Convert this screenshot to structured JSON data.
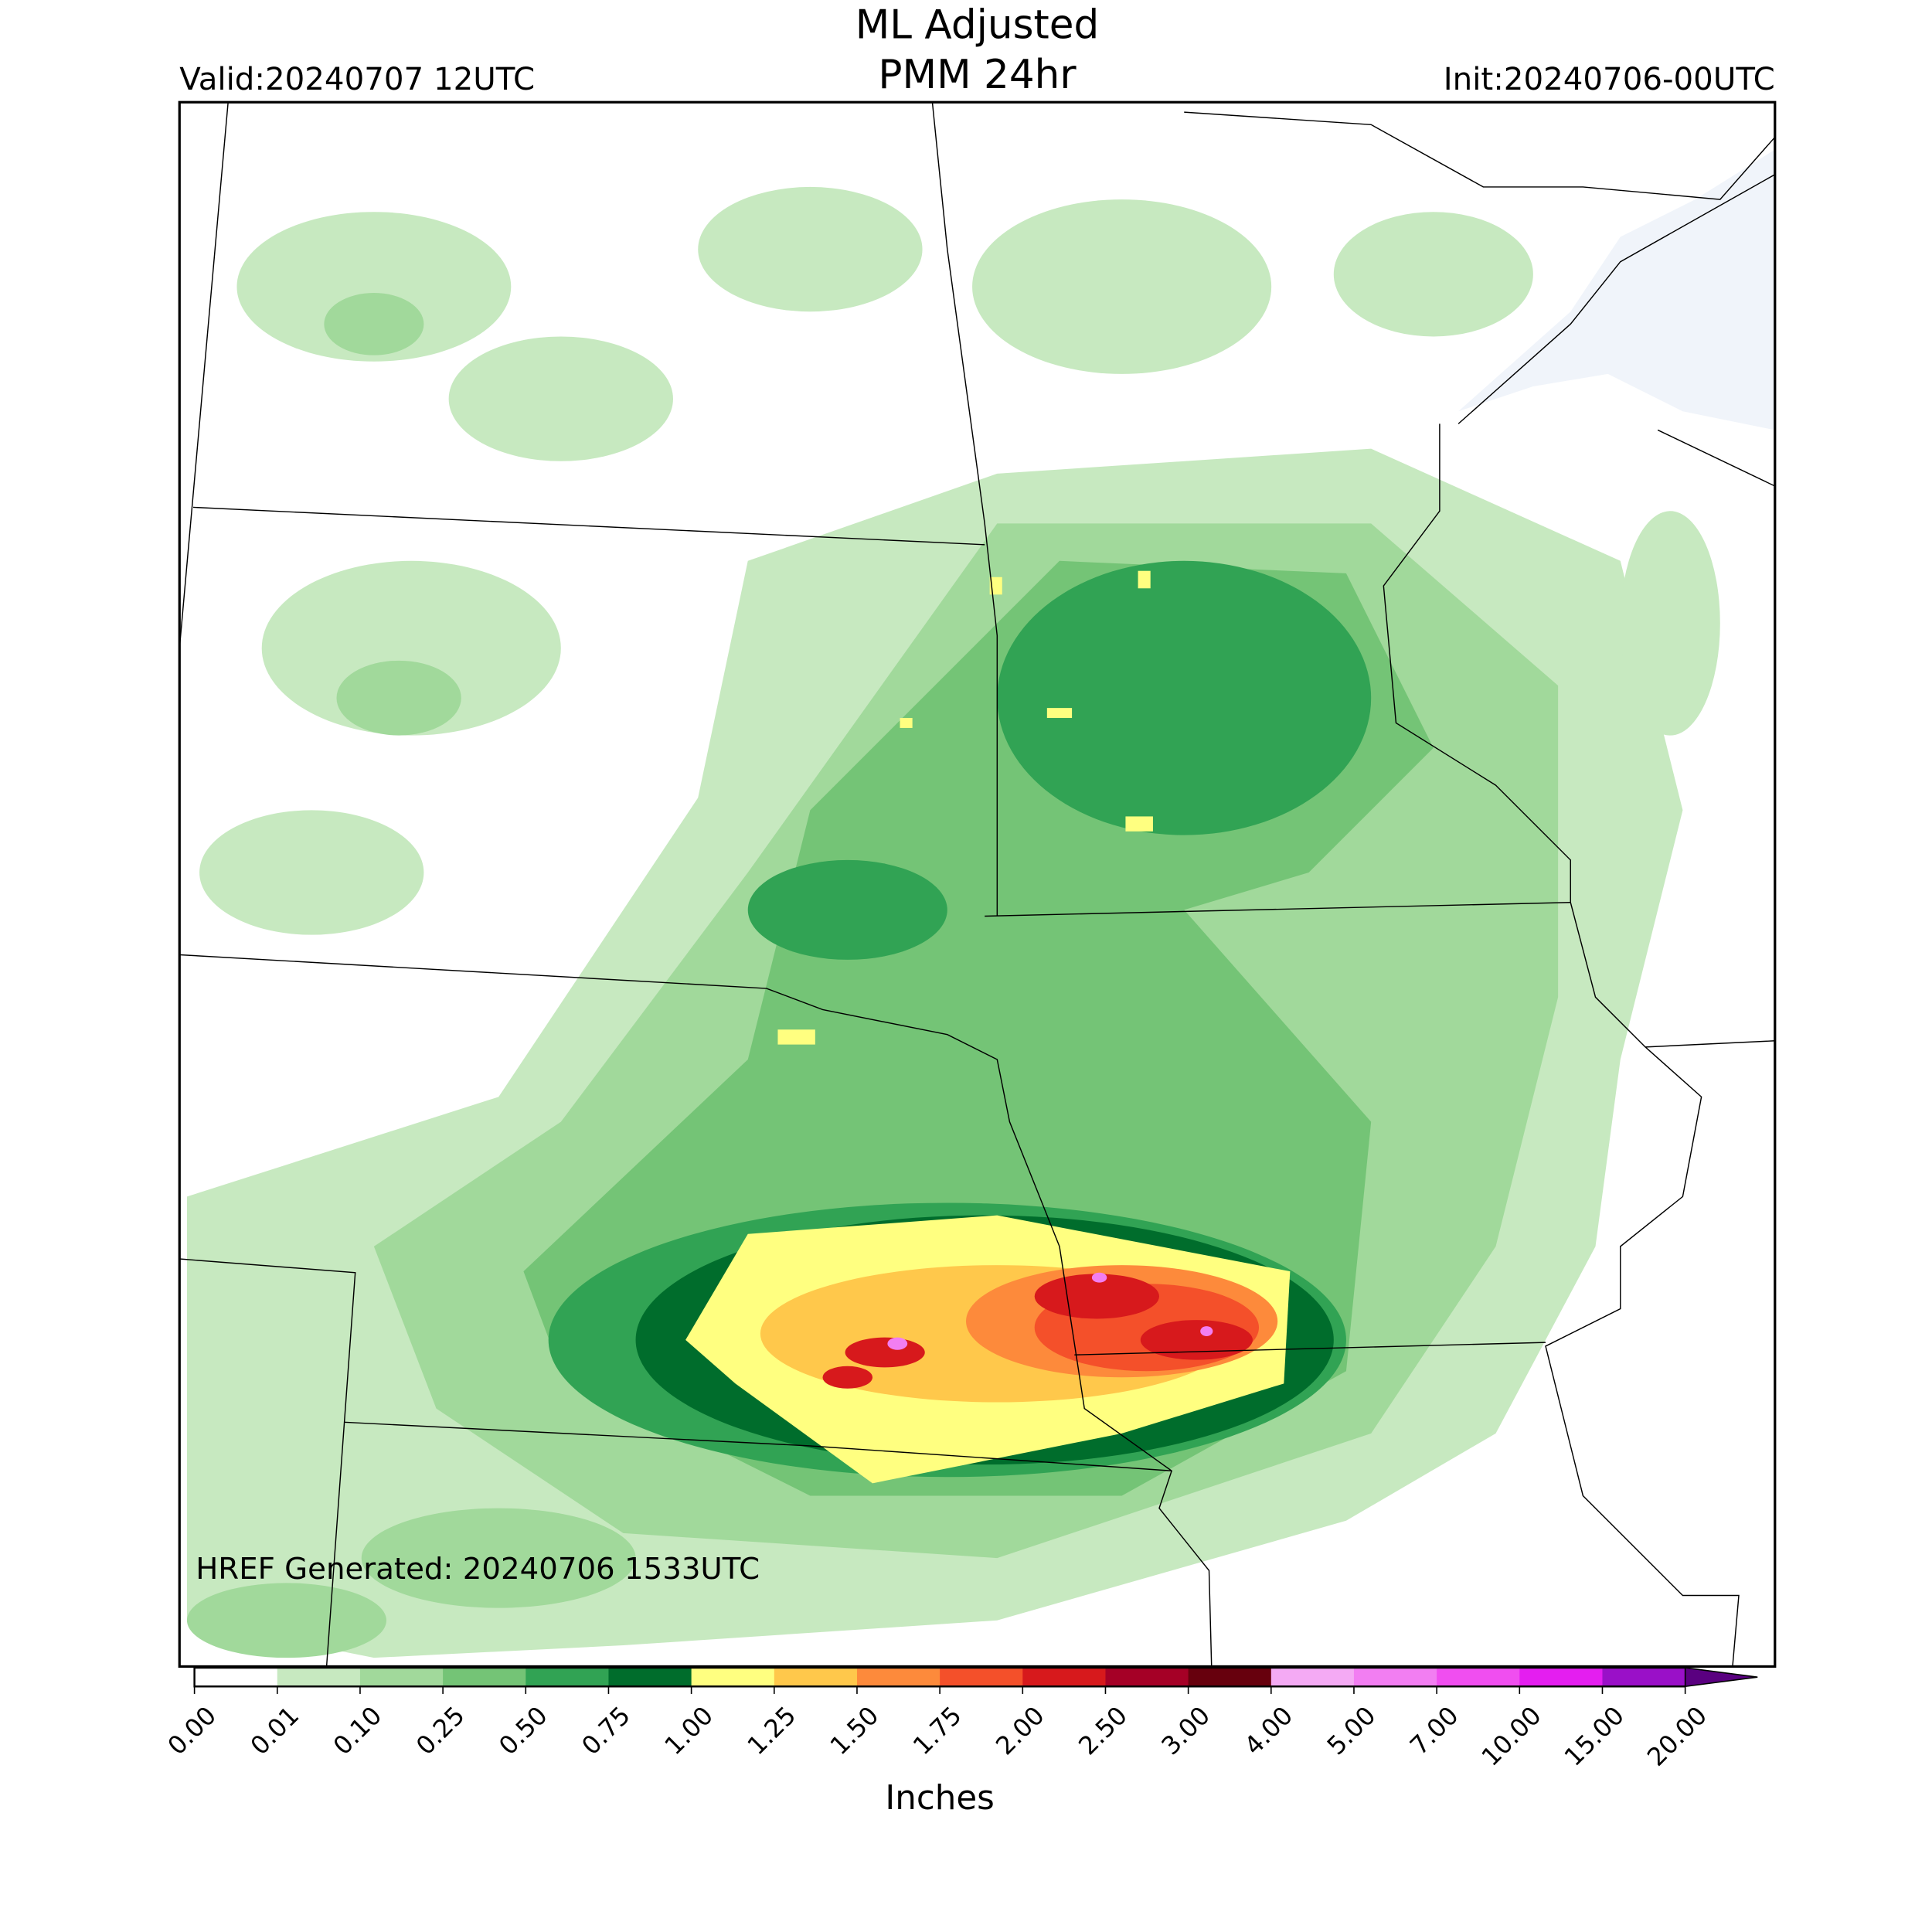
{
  "header": {
    "title": "ML Adjusted",
    "subtitle": "PMM 24hr",
    "valid": "Valid:20240707 12UTC",
    "init": "Init:20240706-00UTC"
  },
  "annotation": "HREF Generated: 20240706 1533UTC",
  "colorbar": {
    "label": "Inches",
    "ticks": [
      {
        "value": 0,
        "label": "0.00"
      },
      {
        "value": 0.01,
        "label": "0.01"
      },
      {
        "value": 0.1,
        "label": "0.10"
      },
      {
        "value": 0.25,
        "label": "0.25"
      },
      {
        "value": 0.5,
        "label": "0.50"
      },
      {
        "value": 0.75,
        "label": "0.75"
      },
      {
        "value": 1,
        "label": "1.00"
      },
      {
        "value": 1.25,
        "label": "1.25"
      },
      {
        "value": 1.5,
        "label": "1.50"
      },
      {
        "value": 1.75,
        "label": "1.75"
      },
      {
        "value": 2,
        "label": "2.00"
      },
      {
        "value": 2.5,
        "label": "2.50"
      },
      {
        "value": 3,
        "label": "3.00"
      },
      {
        "value": 4,
        "label": "4.00"
      },
      {
        "value": 5,
        "label": "5.00"
      },
      {
        "value": 7,
        "label": "7.00"
      },
      {
        "value": 10,
        "label": "10.00"
      },
      {
        "value": 15,
        "label": "15.00"
      },
      {
        "value": 20,
        "label": "20.00"
      }
    ],
    "colors": [
      "#ffffff",
      "#c7e9c0",
      "#a1d99b",
      "#74c476",
      "#31a354",
      "#006d2c",
      "#ffff80",
      "#ffc84b",
      "#fd8a3b",
      "#f4502a",
      "#d7191c",
      "#a50026",
      "#67000d",
      "#f4aaf4",
      "#f27ef2",
      "#f04ef0",
      "#e41ef0",
      "#9a10c8"
    ],
    "extend_color": "#5a0080"
  }
}
